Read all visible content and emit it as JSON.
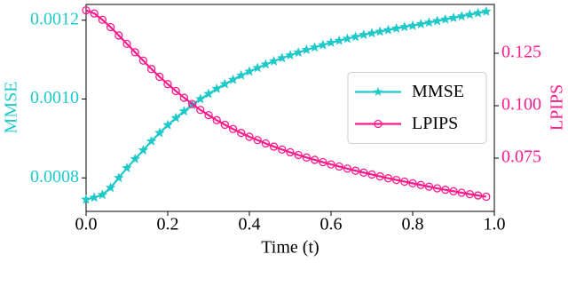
{
  "chart_data": {
    "type": "line",
    "x_label": "Time (t)",
    "y_label": "MMSE",
    "y2_label": "LPIPS",
    "x": [
      0,
      0.02,
      0.04,
      0.06,
      0.08,
      0.1,
      0.12,
      0.14,
      0.16,
      0.18,
      0.2,
      0.22,
      0.24,
      0.26,
      0.28,
      0.3,
      0.32,
      0.34,
      0.36,
      0.38,
      0.4,
      0.42,
      0.44,
      0.46,
      0.48,
      0.5,
      0.52,
      0.54,
      0.56,
      0.58,
      0.6,
      0.62,
      0.64,
      0.66,
      0.68,
      0.7,
      0.72,
      0.74,
      0.76,
      0.78,
      0.8,
      0.82,
      0.84,
      0.86,
      0.88,
      0.9,
      0.92,
      0.94,
      0.96,
      0.98
    ],
    "series": [
      {
        "name": "MMSE",
        "color": "#1fc9c9",
        "marker": "star",
        "axis": "y",
        "values": [
          0.000745,
          0.00075,
          0.000757,
          0.000775,
          0.0008,
          0.000825,
          0.000848,
          0.00087,
          0.000893,
          0.000914,
          0.000934,
          0.000952,
          0.000969,
          0.000985,
          0.001,
          0.001013,
          0.001026,
          0.001038,
          0.001049,
          0.00106,
          0.00107,
          0.001079,
          0.001088,
          0.001096,
          0.001104,
          0.001111,
          0.001118,
          0.001125,
          0.001131,
          0.001137,
          0.001143,
          0.001148,
          0.001153,
          0.001158,
          0.001163,
          0.001167,
          0.001171,
          0.001175,
          0.001179,
          0.001183,
          0.001186,
          0.00119,
          0.001194,
          0.001198,
          0.001202,
          0.001206,
          0.00121,
          0.001214,
          0.001218,
          0.001222
        ]
      },
      {
        "name": "LPIPS",
        "color": "#ff1a8c",
        "marker": "circle",
        "axis": "y2",
        "values": [
          0.1455,
          0.144,
          0.141,
          0.1375,
          0.1335,
          0.1295,
          0.1255,
          0.1215,
          0.1175,
          0.1138,
          0.1103,
          0.107,
          0.1038,
          0.1008,
          0.098,
          0.0955,
          0.0931,
          0.0909,
          0.0889,
          0.087,
          0.0852,
          0.0836,
          0.082,
          0.0805,
          0.0791,
          0.0778,
          0.0765,
          0.0753,
          0.0742,
          0.0731,
          0.072,
          0.071,
          0.07,
          0.069,
          0.0681,
          0.0672,
          0.0663,
          0.0654,
          0.0646,
          0.0638,
          0.063,
          0.0622,
          0.0614,
          0.0606,
          0.0599,
          0.0592,
          0.0585,
          0.0578,
          0.0572,
          0.0566
        ]
      }
    ],
    "xlim": [
      0,
      1
    ],
    "xticks": [
      {
        "value": 0,
        "label": "0.0"
      },
      0.2,
      0.4,
      0.6,
      0.8,
      {
        "value": 1,
        "label": "1.0"
      }
    ],
    "ylim": [
      0.000715,
      0.00124
    ],
    "yticks": [
      0.0008,
      {
        "value": 0.001,
        "label": "0.0010"
      },
      0.0012
    ],
    "y2lim": [
      0.0496,
      0.1483
    ],
    "y2ticks": [
      0.075,
      {
        "value": 0.1,
        "label": "0.100"
      },
      0.125
    ],
    "legend": "center right",
    "grid": false
  }
}
